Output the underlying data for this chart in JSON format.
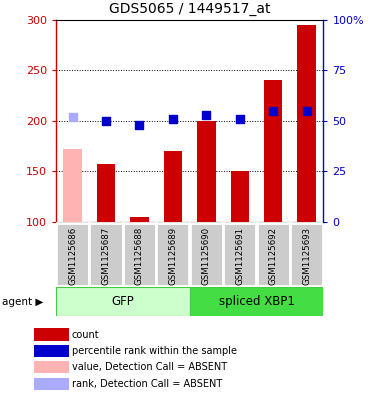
{
  "title": "GDS5065 / 1449517_at",
  "samples": [
    "GSM1125686",
    "GSM1125687",
    "GSM1125688",
    "GSM1125689",
    "GSM1125690",
    "GSM1125691",
    "GSM1125692",
    "GSM1125693"
  ],
  "bar_values": [
    null,
    157,
    105,
    170,
    200,
    150,
    240,
    295
  ],
  "bar_absent_values": [
    172,
    null,
    null,
    null,
    null,
    null,
    null,
    null
  ],
  "dot_values_pct": [
    null,
    50,
    48,
    51,
    53,
    51,
    55,
    55
  ],
  "dot_absent_values_pct": [
    52,
    null,
    null,
    null,
    null,
    null,
    null,
    null
  ],
  "bar_color": "#cc0000",
  "bar_absent_color": "#ffb3b3",
  "dot_color": "#0000cc",
  "dot_absent_color": "#aaaaff",
  "ylim_left": [
    100,
    300
  ],
  "ylim_right": [
    0,
    100
  ],
  "yticks_left": [
    100,
    150,
    200,
    250,
    300
  ],
  "yticks_right": [
    0,
    25,
    50,
    75,
    100
  ],
  "ytick_labels_left": [
    "100",
    "150",
    "200",
    "250",
    "300"
  ],
  "ytick_labels_right": [
    "0",
    "25",
    "50",
    "75",
    "100%"
  ],
  "groups": [
    {
      "label": "GFP",
      "start": 0,
      "end": 4,
      "color": "#ccffcc",
      "edge_color": "#44cc44"
    },
    {
      "label": "spliced XBP1",
      "start": 4,
      "end": 8,
      "color": "#44dd44",
      "edge_color": "#44cc44"
    }
  ],
  "group_row_label": "agent",
  "legend_items": [
    {
      "color": "#cc0000",
      "label": "count"
    },
    {
      "color": "#0000cc",
      "label": "percentile rank within the sample"
    },
    {
      "color": "#ffb3b3",
      "label": "value, Detection Call = ABSENT"
    },
    {
      "color": "#aaaaff",
      "label": "rank, Detection Call = ABSENT"
    }
  ],
  "bar_width": 0.55,
  "dot_size": 35,
  "left_axis_color": "#cc0000",
  "right_axis_color": "#0000cc",
  "sample_box_color": "#cccccc",
  "sample_box_edge": "#ffffff"
}
